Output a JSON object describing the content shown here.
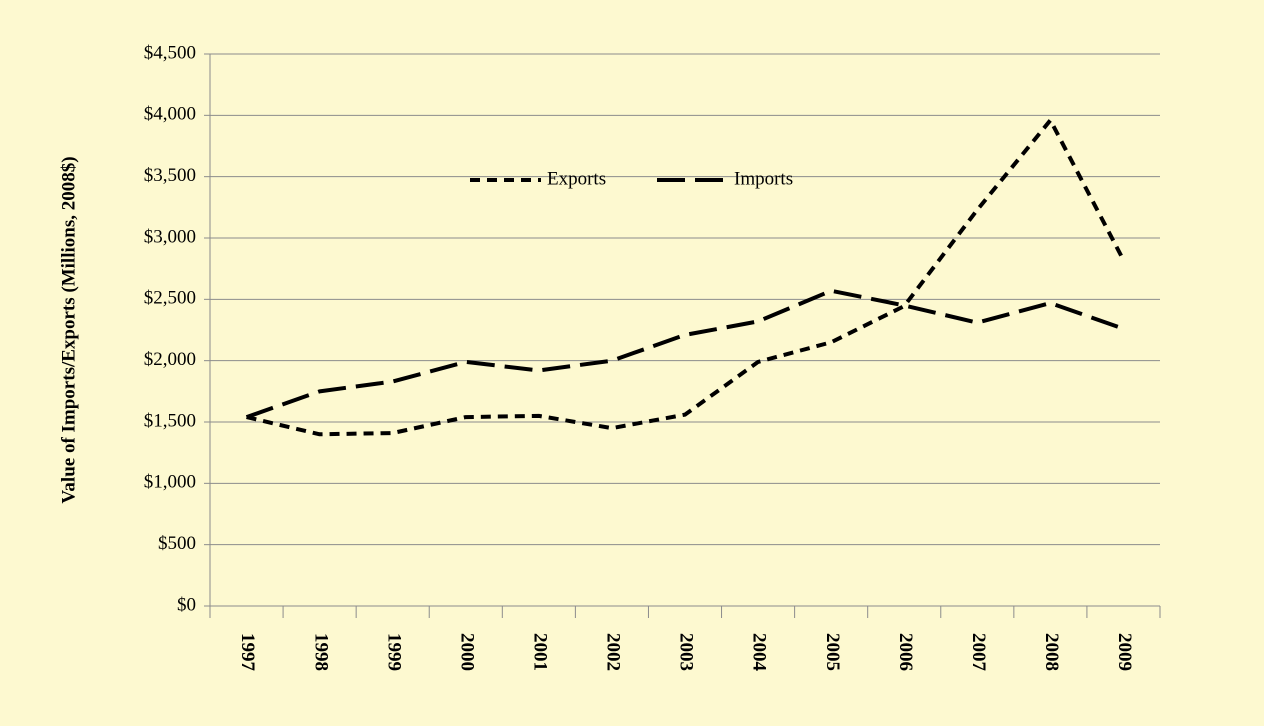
{
  "chart_data": {
    "type": "line",
    "y_label": "Value of Imports/Exports (Millions, 2008$)",
    "categories": [
      "1997",
      "1998",
      "1999",
      "2000",
      "2001",
      "2002",
      "2003",
      "2004",
      "2005",
      "2006",
      "2007",
      "2008",
      "2009"
    ],
    "series": [
      {
        "name": "Exports",
        "color": "#000000",
        "values": [
          1540,
          1400,
          1410,
          1540,
          1550,
          1450,
          1560,
          1990,
          2150,
          2445,
          3230,
          3960,
          2820
        ]
      },
      {
        "name": "Imports",
        "color": "#000000",
        "values": [
          1540,
          1750,
          1830,
          1990,
          1920,
          2000,
          2210,
          2320,
          2570,
          2450,
          2310,
          2470,
          2260
        ]
      }
    ],
    "ylim": [
      0,
      4500
    ],
    "yticks": [
      {
        "value": 0,
        "label": "$0"
      },
      {
        "value": 500,
        "label": "$500"
      },
      {
        "value": 1000,
        "label": "$1,000"
      },
      {
        "value": 1500,
        "label": "$1,500"
      },
      {
        "value": 2000,
        "label": "$2,000"
      },
      {
        "value": 2500,
        "label": "$2,500"
      },
      {
        "value": 3000,
        "label": "$3,000"
      },
      {
        "value": 3500,
        "label": "$3,500"
      },
      {
        "value": 4000,
        "label": "$4,000"
      },
      {
        "value": 4500,
        "label": "$4,500"
      }
    ],
    "grid": true
  }
}
